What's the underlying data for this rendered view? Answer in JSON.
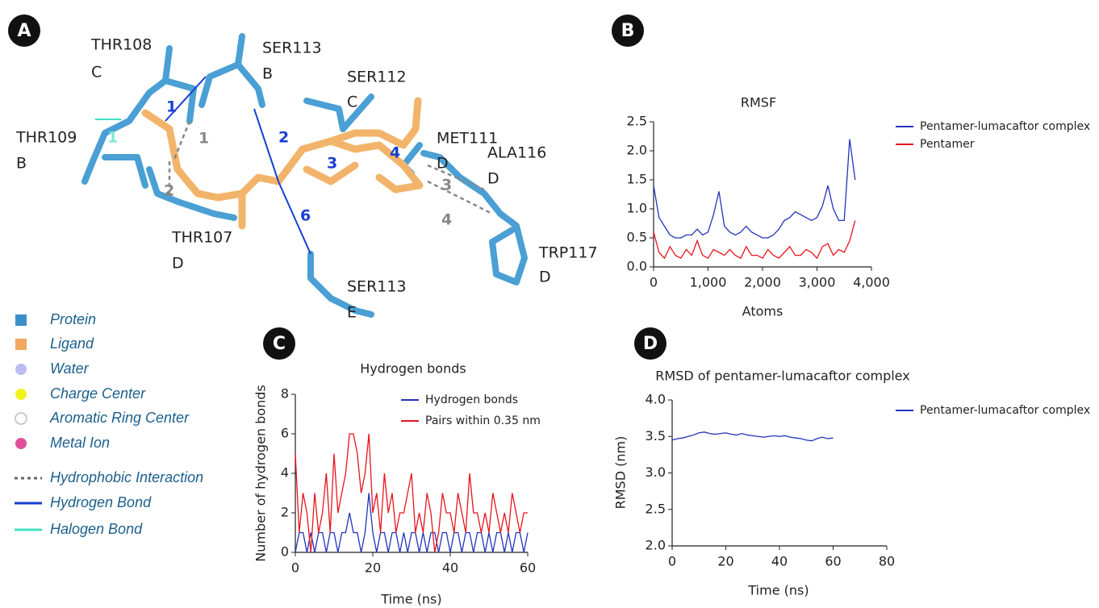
{
  "panel_labels": [
    "A",
    "B",
    "C",
    "D"
  ],
  "diagram": {
    "residues": [
      {
        "name": "THR108",
        "chain": "C"
      },
      {
        "name": "SER113",
        "chain": "B"
      },
      {
        "name": "SER112",
        "chain": "C"
      },
      {
        "name": "THR109",
        "chain": "B"
      },
      {
        "name": "MET111",
        "chain": "D"
      },
      {
        "name": "ALA116",
        "chain": "D"
      },
      {
        "name": "THR107",
        "chain": "D"
      },
      {
        "name": "TRP117",
        "chain": "D"
      },
      {
        "name": "SER113",
        "chain": "E"
      }
    ],
    "interaction_labels": [
      "1",
      "1",
      "1",
      "2",
      "2",
      "3",
      "4",
      "3",
      "4",
      "6"
    ]
  },
  "legend": [
    "Protein",
    "Ligand",
    "Water",
    "Charge Center",
    "Aromatic Ring Center",
    "Metal Ion",
    "Hydrophobic Interaction",
    "Hydrogen Bond",
    "Halogen Bond"
  ],
  "chart_data": [
    {
      "type": "line",
      "title": "RMSF",
      "xlabel": "Atoms",
      "x": [
        0,
        100,
        200,
        300,
        400,
        500,
        600,
        700,
        800,
        900,
        1000,
        1100,
        1200,
        1300,
        1400,
        1500,
        1600,
        1700,
        1800,
        1900,
        2000,
        2100,
        2200,
        2300,
        2400,
        2500,
        2600,
        2700,
        2800,
        2900,
        3000,
        3100,
        3200,
        3300,
        3400,
        3500,
        3600,
        3700
      ],
      "series": [
        {
          "name": "Pentamer-lumacaftor complex",
          "color": "#2233bb",
          "values": [
            1.4,
            0.85,
            0.7,
            0.55,
            0.5,
            0.5,
            0.55,
            0.55,
            0.65,
            0.55,
            0.6,
            0.9,
            1.3,
            0.7,
            0.6,
            0.55,
            0.6,
            0.7,
            0.6,
            0.55,
            0.5,
            0.5,
            0.55,
            0.65,
            0.8,
            0.85,
            0.95,
            0.9,
            0.85,
            0.8,
            0.85,
            1.05,
            1.4,
            1.0,
            0.8,
            0.8,
            2.2,
            1.5
          ]
        },
        {
          "name": "Pentamer",
          "color": "#e8141c",
          "values": [
            0.6,
            0.25,
            0.15,
            0.35,
            0.2,
            0.15,
            0.3,
            0.2,
            0.45,
            0.2,
            0.15,
            0.3,
            0.25,
            0.2,
            0.3,
            0.2,
            0.15,
            0.35,
            0.2,
            0.2,
            0.15,
            0.3,
            0.2,
            0.15,
            0.25,
            0.35,
            0.2,
            0.2,
            0.3,
            0.25,
            0.15,
            0.35,
            0.4,
            0.2,
            0.3,
            0.25,
            0.45,
            0.8
          ]
        }
      ],
      "xlim": [
        0,
        4000
      ],
      "xticks": [
        0,
        {
          "value": 1000,
          "label": "1,000"
        },
        {
          "value": 2000,
          "label": "2,000"
        },
        {
          "value": 3000,
          "label": "3,000"
        },
        {
          "value": 4000,
          "label": "4,000"
        }
      ],
      "ylim": [
        0,
        2.5
      ],
      "yticks": [
        {
          "value": 0,
          "label": "0.0"
        },
        0.5,
        {
          "value": 1,
          "label": "1.0"
        },
        1.5,
        {
          "value": 2,
          "label": "2.0"
        },
        2.5
      ],
      "legend": "outside right"
    },
    {
      "type": "line",
      "title": "Hydrogen bonds",
      "xlabel": "Time (ns)",
      "ylabel": "Number of hydrogen bonds",
      "x": [
        0,
        1,
        2,
        3,
        4,
        5,
        6,
        7,
        8,
        9,
        10,
        11,
        12,
        13,
        14,
        15,
        16,
        17,
        18,
        19,
        20,
        21,
        22,
        23,
        24,
        25,
        26,
        27,
        28,
        29,
        30,
        31,
        32,
        33,
        34,
        35,
        36,
        37,
        38,
        39,
        40,
        41,
        42,
        43,
        44,
        45,
        46,
        47,
        48,
        49,
        50,
        51,
        52,
        53,
        54,
        55,
        56,
        57,
        58,
        59,
        60
      ],
      "series": [
        {
          "name": "Hydrogen bonds",
          "color": "#2233bb",
          "values": [
            0,
            1,
            1,
            0,
            1,
            0,
            1,
            1,
            0,
            1,
            1,
            0,
            1,
            1,
            2,
            1,
            1,
            0,
            1,
            3,
            1,
            0,
            1,
            1,
            0,
            1,
            1,
            0,
            1,
            0,
            1,
            1,
            0,
            1,
            0,
            1,
            1,
            0,
            1,
            1,
            0,
            1,
            1,
            0,
            1,
            1,
            0,
            1,
            1,
            0,
            1,
            0,
            1,
            1,
            0,
            1,
            0,
            1,
            1,
            0,
            1
          ]
        },
        {
          "name": "Pairs within 0.35 nm",
          "color": "#e8141c",
          "values": [
            5,
            1,
            3,
            2,
            0,
            3,
            1,
            2,
            4,
            1,
            5,
            2,
            3,
            4,
            6,
            6,
            5,
            3,
            4,
            6,
            2,
            3,
            1,
            4,
            2,
            3,
            1,
            2,
            2,
            3,
            4,
            1,
            2,
            1,
            3,
            2,
            0,
            1,
            3,
            2,
            2,
            1,
            3,
            2,
            1,
            4,
            2,
            2,
            1,
            2,
            1,
            3,
            2,
            1,
            2,
            1,
            3,
            2,
            1,
            2,
            2
          ]
        }
      ],
      "xlim": [
        0,
        60
      ],
      "xticks": [
        0,
        20,
        40,
        60
      ],
      "ylim": [
        0,
        8
      ],
      "yticks": [
        0,
        2,
        4,
        6,
        8
      ],
      "legend": "upper right"
    },
    {
      "type": "line",
      "title": "RMSD of pentamer-lumacaftor complex",
      "xlabel": "Time (ns)",
      "ylabel": "RMSD (nm)",
      "x": [
        0,
        2,
        4,
        6,
        8,
        10,
        12,
        14,
        16,
        18,
        20,
        22,
        24,
        26,
        28,
        30,
        32,
        34,
        36,
        38,
        40,
        42,
        44,
        46,
        48,
        50,
        52,
        54,
        56,
        58,
        60
      ],
      "series": [
        {
          "name": "Pentamer-lumacaftor complex",
          "color": "#2233bb",
          "values": [
            3.45,
            3.47,
            3.48,
            3.5,
            3.52,
            3.55,
            3.56,
            3.54,
            3.53,
            3.54,
            3.55,
            3.53,
            3.52,
            3.54,
            3.52,
            3.51,
            3.5,
            3.49,
            3.5,
            3.51,
            3.5,
            3.51,
            3.49,
            3.48,
            3.47,
            3.45,
            3.44,
            3.47,
            3.49,
            3.47,
            3.48
          ]
        }
      ],
      "xlim": [
        0,
        80
      ],
      "xticks": [
        0,
        20,
        40,
        60,
        80
      ],
      "ylim": [
        2,
        4
      ],
      "yticks": [
        {
          "value": 2,
          "label": "2.0"
        },
        2.5,
        {
          "value": 3,
          "label": "3.0"
        },
        3.5,
        {
          "value": 4,
          "label": "4.0"
        }
      ],
      "legend": "outside right"
    }
  ]
}
